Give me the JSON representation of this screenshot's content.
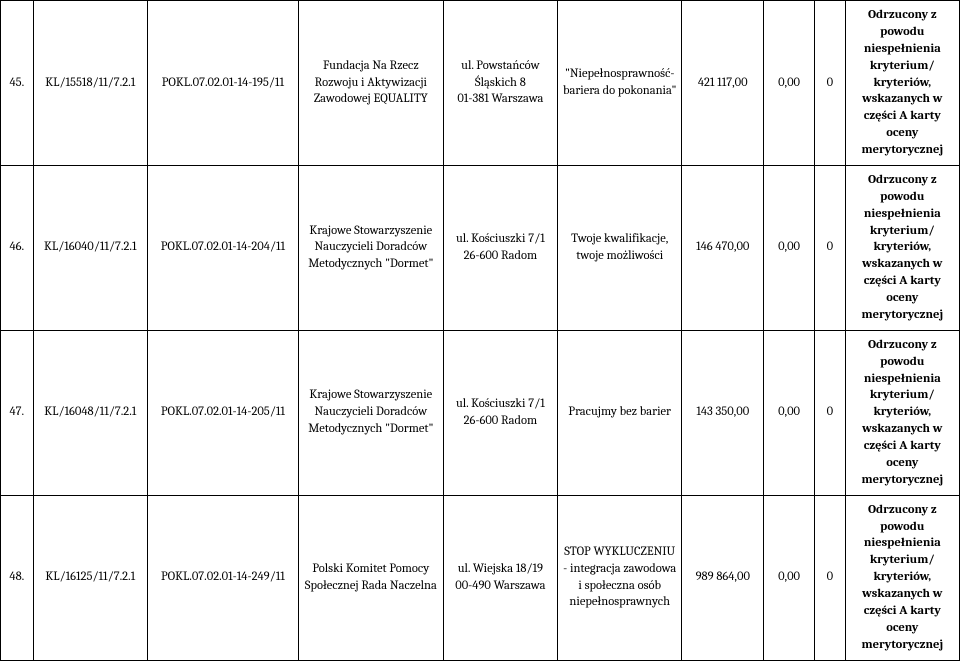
{
  "table": {
    "rows": [
      {
        "num": "45.",
        "id": "KL/15518/11/7.2.1",
        "pokl": "POKL.07.02.01-14-195/11",
        "org": "Fundacja Na Rzecz Rozwoju i Aktywizacji Zawodowej EQUALITY",
        "addr": "ul. Powstańców Śląskich 8\n01-381 Warszawa",
        "proj": "\"Niepełnosprawność- bariera do pokonania\"",
        "amt": "421 117,00",
        "zero": "0,00",
        "z": "0",
        "status": "Odrzucony z powodu niespełnienia kryterium/ kryteriów, wskazanych w części A karty oceny merytorycznej"
      },
      {
        "num": "46.",
        "id": "KL/16040/11/7.2.1",
        "pokl": "POKL.07.02.01-14-204/11",
        "org": "Krajowe Stowarzyszenie Nauczycieli Doradców Metodycznych \"Dormet\"",
        "addr": "ul. Kościuszki 7/1\n26-600 Radom",
        "proj": "Twoje kwalifikacje, twoje możliwości",
        "amt": "146 470,00",
        "zero": "0,00",
        "z": "0",
        "status": "Odrzucony z powodu niespełnienia kryterium/ kryteriów, wskazanych w części A karty oceny merytorycznej"
      },
      {
        "num": "47.",
        "id": "KL/16048/11/7.2.1",
        "pokl": "POKL.07.02.01-14-205/11",
        "org": "Krajowe Stowarzyszenie Nauczycieli Doradców Metodycznych \"Dormet\"",
        "addr": "ul. Kościuszki 7/1\n26-600 Radom",
        "proj": "Pracujmy bez barier",
        "amt": "143 350,00",
        "zero": "0,00",
        "z": "0",
        "status": "Odrzucony z powodu niespełnienia kryterium/ kryteriów, wskazanych w części A karty oceny merytorycznej"
      },
      {
        "num": "48.",
        "id": "KL/16125/11/7.2.1",
        "pokl": "POKL.07.02.01-14-249/11",
        "org": "Polski Komitet Pomocy Społecznej Rada Naczelna",
        "addr": "ul. Wiejska 18/19\n00-490 Warszawa",
        "proj": "STOP WYKLUCZENIU - integracja zawodowa i społeczna osób niepełnosprawnych",
        "amt": "989 864,00",
        "zero": "0,00",
        "z": "0",
        "status": "Odrzucony z powodu niespełnienia kryterium/ kryteriów, wskazanych w części A karty oceny merytorycznej"
      }
    ]
  }
}
